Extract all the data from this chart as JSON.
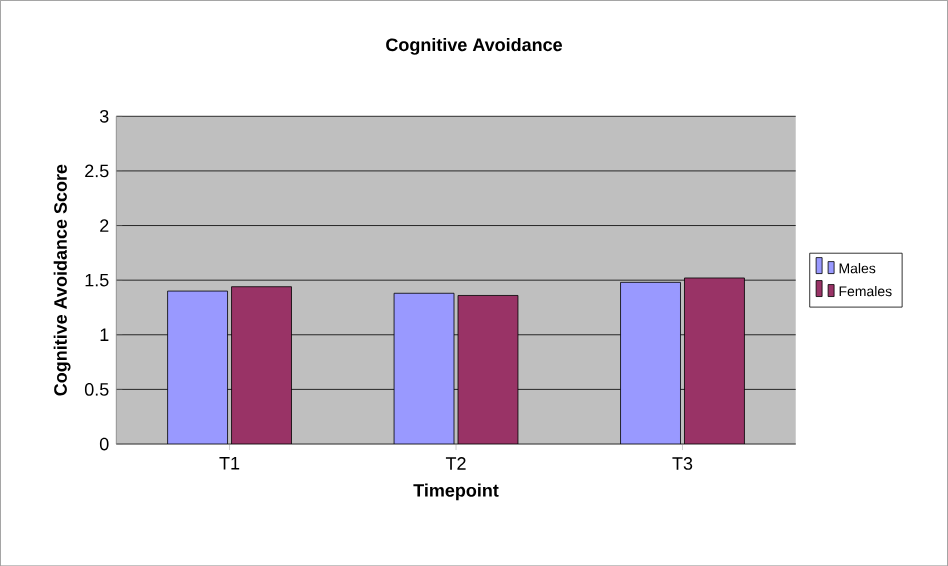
{
  "chart_data": {
    "type": "bar",
    "title": "Cognitive Avoidance",
    "xlabel": "Timepoint",
    "ylabel": "Cognitive Avoidance Score",
    "categories": [
      "T1",
      "T2",
      "T3"
    ],
    "series": [
      {
        "name": "Males",
        "color": "#9999ff",
        "values": [
          1.4,
          1.38,
          1.48
        ]
      },
      {
        "name": "Females",
        "color": "#993366",
        "values": [
          1.44,
          1.36,
          1.52
        ]
      }
    ],
    "ylim": [
      0,
      3
    ],
    "yticks": [
      0,
      0.5,
      1,
      1.5,
      2,
      2.5,
      3
    ],
    "grid": "y",
    "legend": "right"
  }
}
